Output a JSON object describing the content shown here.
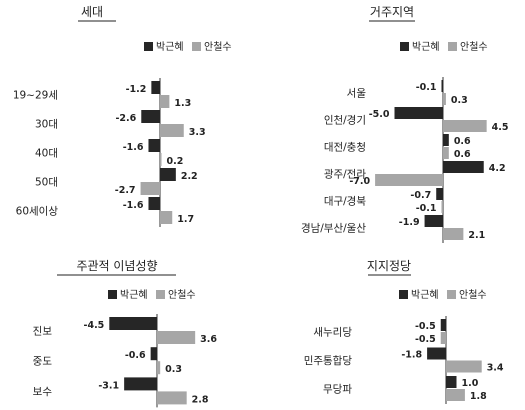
{
  "colors": {
    "park": "#262626",
    "ahn": "#a6a6a6"
  },
  "chart_data": [
    {
      "type": "bar",
      "title": "세대",
      "categories": [
        "19~29세",
        "30대",
        "40대",
        "50대",
        "60세이상"
      ],
      "series": [
        {
          "name": "박근혜",
          "values": [
            -1.2,
            -2.6,
            -1.6,
            2.2,
            -1.6
          ]
        },
        {
          "name": "안철수",
          "values": [
            1.3,
            3.3,
            0.2,
            -2.7,
            1.7
          ]
        }
      ],
      "legend": "top-right"
    },
    {
      "type": "bar",
      "title": "거주지역",
      "categories": [
        "서울",
        "인천/경기",
        "대전/충청",
        "광주/전라",
        "대구/경북",
        "경남/부산/울산"
      ],
      "series": [
        {
          "name": "박근혜",
          "values": [
            -0.1,
            -5.0,
            0.6,
            4.2,
            -0.7,
            -1.9
          ]
        },
        {
          "name": "안철수",
          "values": [
            0.3,
            4.5,
            0.6,
            -7.0,
            -0.1,
            2.1
          ]
        }
      ],
      "legend": "top-right"
    },
    {
      "type": "bar",
      "title": "주관적 이념성향",
      "categories": [
        "진보",
        "중도",
        "보수"
      ],
      "series": [
        {
          "name": "박근혜",
          "values": [
            -4.5,
            -0.6,
            -3.1
          ]
        },
        {
          "name": "안철수",
          "values": [
            3.6,
            0.3,
            2.8
          ]
        }
      ],
      "legend": "top-right"
    },
    {
      "type": "bar",
      "title": "지지정당",
      "categories": [
        "새누리당",
        "민주통합당",
        "무당파"
      ],
      "series": [
        {
          "name": "박근혜",
          "values": [
            -0.5,
            -1.8,
            1.0
          ]
        },
        {
          "name": "안철수",
          "values": [
            -0.5,
            3.4,
            1.8
          ]
        }
      ],
      "legend": "top-right"
    }
  ]
}
